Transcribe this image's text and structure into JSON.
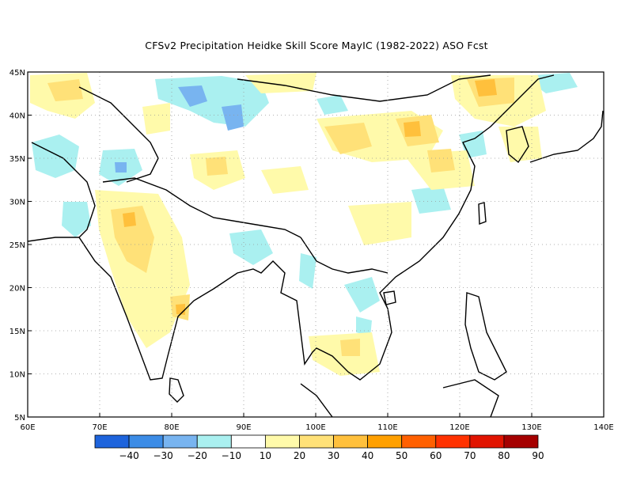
{
  "title": "CFSv2  Precipitation Heidke Skill Score MayIC (1982-2022) ASO Fcst",
  "lon_ticks": [
    "60E",
    "70E",
    "80E",
    "90E",
    "100E",
    "110E",
    "120E",
    "130E",
    "140E"
  ],
  "lat_ticks": [
    "45N",
    "40N",
    "35N",
    "30N",
    "25N",
    "20N",
    "15N",
    "10N",
    "5N"
  ],
  "colorbar": {
    "colors": [
      "#1e64dc",
      "#3c8ce6",
      "#78b4f0",
      "#aaf0f0",
      "#ffffff",
      "#fffaaa",
      "#ffe178",
      "#ffc03c",
      "#ffa000",
      "#ff6000",
      "#ff3200",
      "#e11400",
      "#a50000"
    ],
    "labels": [
      "-40",
      "-30",
      "-20",
      "-10",
      "10",
      "20",
      "30",
      "40",
      "50",
      "60",
      "70",
      "80",
      "90"
    ]
  },
  "colors": {
    "light_blue": "#aaf0f0",
    "mid_blue": "#78b4f0",
    "pale_yellow": "#fffaaa",
    "yellow": "#ffe178",
    "orange": "#ffc03c"
  }
}
